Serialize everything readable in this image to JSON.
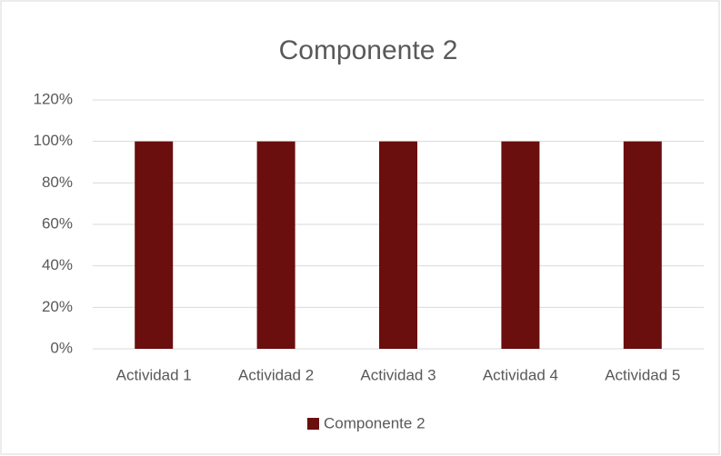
{
  "chart_data": {
    "type": "bar",
    "title": "Componente 2",
    "categories": [
      "Actividad 1",
      "Actividad 2",
      "Actividad 3",
      "Actividad 4",
      "Actividad 5"
    ],
    "series": [
      {
        "name": "Componente 2",
        "color": "#6b0e0e",
        "values": [
          100,
          100,
          100,
          100,
          100
        ]
      }
    ],
    "ylim": [
      0,
      120
    ],
    "yticks": [
      {
        "value": 0,
        "label": "0%"
      },
      {
        "value": 20,
        "label": "20%"
      },
      {
        "value": 40,
        "label": "40%"
      },
      {
        "value": 60,
        "label": "60%"
      },
      {
        "value": 80,
        "label": "80%"
      },
      {
        "value": 100,
        "label": "100%"
      },
      {
        "value": 120,
        "label": "120%"
      }
    ],
    "grid": true,
    "legend": "bottom"
  }
}
